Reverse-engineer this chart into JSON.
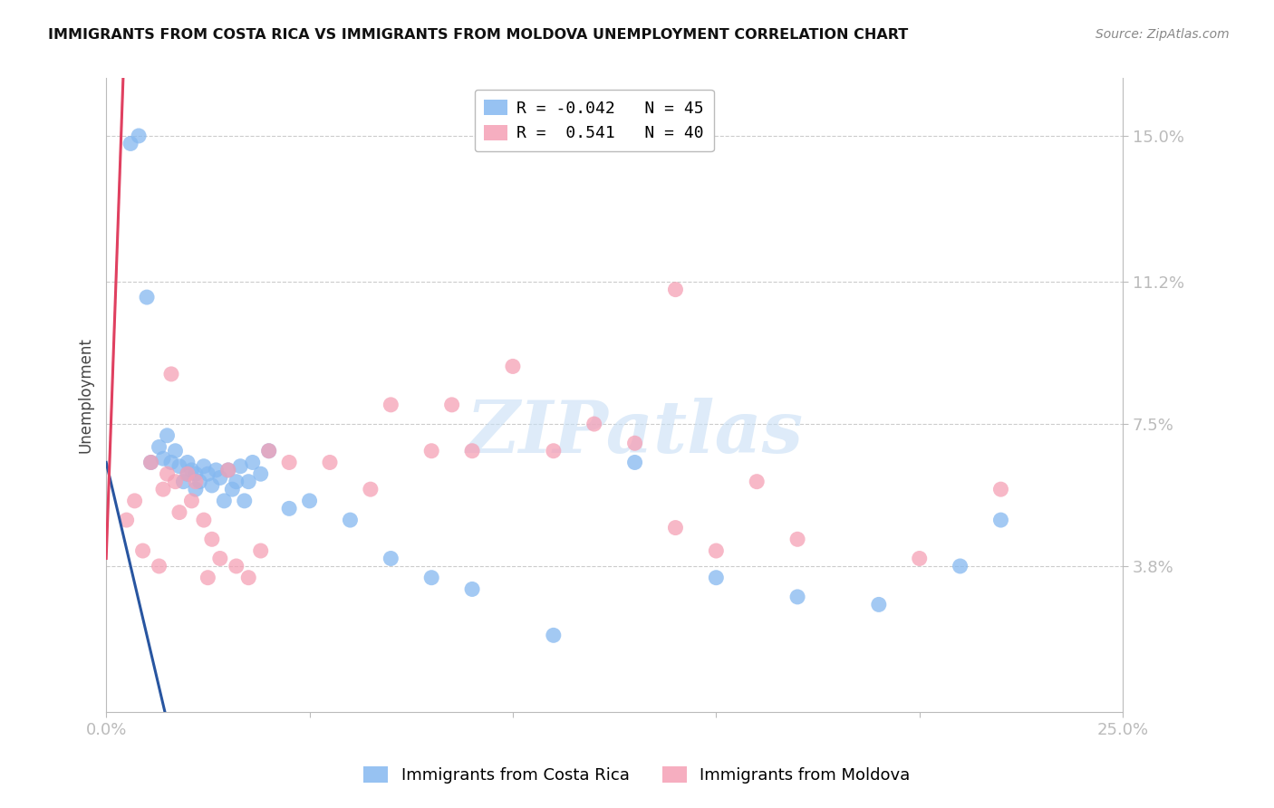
{
  "title": "IMMIGRANTS FROM COSTA RICA VS IMMIGRANTS FROM MOLDOVA UNEMPLOYMENT CORRELATION CHART",
  "source": "Source: ZipAtlas.com",
  "ylabel": "Unemployment",
  "ytick_labels": [
    "15.0%",
    "11.2%",
    "7.5%",
    "3.8%"
  ],
  "ytick_values": [
    0.15,
    0.112,
    0.075,
    0.038
  ],
  "xmin": 0.0,
  "xmax": 0.25,
  "ymin": 0.0,
  "ymax": 0.165,
  "legend_r_cr": "R = -0.042",
  "legend_n_cr": "N = 45",
  "legend_r_md": "R =  0.541",
  "legend_n_md": "N = 40",
  "costa_rica_color": "#85b8f0",
  "moldova_color": "#f5a0b5",
  "trend_costa_rica_color": "#2855a0",
  "trend_moldova_color": "#e04060",
  "trend_moldova_dashed_color": "#f0b0c0",
  "background_color": "#ffffff",
  "grid_color": "#cccccc",
  "watermark_text": "ZIPatlas",
  "watermark_color": "#c8dff5",
  "cr_x": [
    0.006,
    0.008,
    0.01,
    0.011,
    0.013,
    0.014,
    0.015,
    0.016,
    0.017,
    0.018,
    0.019,
    0.02,
    0.02,
    0.021,
    0.022,
    0.022,
    0.023,
    0.024,
    0.025,
    0.026,
    0.027,
    0.028,
    0.029,
    0.03,
    0.031,
    0.032,
    0.033,
    0.034,
    0.035,
    0.036,
    0.038,
    0.04,
    0.045,
    0.05,
    0.06,
    0.07,
    0.08,
    0.09,
    0.11,
    0.13,
    0.15,
    0.17,
    0.19,
    0.21,
    0.22
  ],
  "cr_y": [
    0.148,
    0.15,
    0.108,
    0.065,
    0.069,
    0.066,
    0.072,
    0.065,
    0.068,
    0.064,
    0.06,
    0.065,
    0.062,
    0.063,
    0.062,
    0.058,
    0.06,
    0.064,
    0.062,
    0.059,
    0.063,
    0.061,
    0.055,
    0.063,
    0.058,
    0.06,
    0.064,
    0.055,
    0.06,
    0.065,
    0.062,
    0.068,
    0.053,
    0.055,
    0.05,
    0.04,
    0.035,
    0.032,
    0.02,
    0.065,
    0.035,
    0.03,
    0.028,
    0.038,
    0.05
  ],
  "md_x": [
    0.005,
    0.007,
    0.009,
    0.011,
    0.013,
    0.014,
    0.015,
    0.016,
    0.017,
    0.018,
    0.02,
    0.021,
    0.022,
    0.024,
    0.025,
    0.026,
    0.028,
    0.03,
    0.032,
    0.035,
    0.038,
    0.04,
    0.045,
    0.055,
    0.065,
    0.07,
    0.08,
    0.085,
    0.09,
    0.1,
    0.11,
    0.12,
    0.13,
    0.14,
    0.14,
    0.15,
    0.16,
    0.17,
    0.2,
    0.22
  ],
  "md_y": [
    0.05,
    0.055,
    0.042,
    0.065,
    0.038,
    0.058,
    0.062,
    0.088,
    0.06,
    0.052,
    0.062,
    0.055,
    0.06,
    0.05,
    0.035,
    0.045,
    0.04,
    0.063,
    0.038,
    0.035,
    0.042,
    0.068,
    0.065,
    0.065,
    0.058,
    0.08,
    0.068,
    0.08,
    0.068,
    0.09,
    0.068,
    0.075,
    0.07,
    0.11,
    0.048,
    0.042,
    0.06,
    0.045,
    0.04,
    0.058
  ]
}
